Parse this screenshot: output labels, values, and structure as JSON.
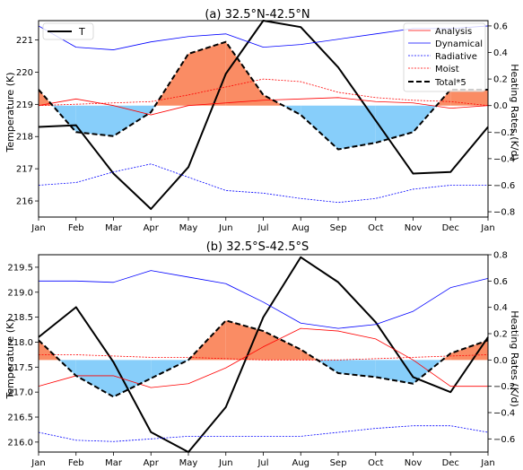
{
  "figure": {
    "months": [
      "Jan",
      "Feb",
      "Mar",
      "Apr",
      "May",
      "Jun",
      "Jul",
      "Aug",
      "Sep",
      "Oct",
      "Nov",
      "Dec",
      "Jan"
    ]
  },
  "colors": {
    "T": "#000000",
    "Analysis": "#ff0000",
    "Dynamical": "#0000ff",
    "Radiative": "#0000ff",
    "Moist": "#ff0000",
    "Total": "#000000",
    "fill_positive": "#fa8c64",
    "fill_negative": "#87cefa"
  },
  "chart_data": [
    {
      "type": "line",
      "title": "(a) 32.5$^\\circ$N-42.5$^\\circ$N",
      "title_display": "(a) 32.5°N-42.5°N",
      "xlabel": "",
      "ylabel_left": "Temperature (K)",
      "ylabel_right": "Heating Rates (K/d)",
      "x": [
        "Jan",
        "Feb",
        "Mar",
        "Apr",
        "May",
        "Jun",
        "Jul",
        "Aug",
        "Sep",
        "Oct",
        "Nov",
        "Dec",
        "Jan"
      ],
      "ylim_left": [
        215.5,
        221.6
      ],
      "ylim_right": [
        -0.84,
        0.64
      ],
      "yticks_left": [
        216,
        217,
        218,
        219,
        220,
        221
      ],
      "yticks_right": [
        -0.8,
        -0.6,
        -0.4,
        -0.2,
        0.0,
        0.2,
        0.4,
        0.6
      ],
      "ytick_labels_left": [
        "216",
        "217",
        "218",
        "219",
        "220",
        "221"
      ],
      "ytick_labels_right": [
        "−0.8",
        "−0.6",
        "−0.4",
        "−0.2",
        "0.0",
        "0.2",
        "0.4",
        "0.6"
      ],
      "grid": false,
      "legend_left": {
        "position": "upper-left",
        "entries": [
          "T"
        ]
      },
      "legend_right": {
        "position": "upper-right",
        "entries": [
          "Analysis",
          "Dynamical",
          "Radiative",
          "Moist",
          "Total*5"
        ]
      },
      "series": [
        {
          "name": "T",
          "axis": "left",
          "style": "solid-thick",
          "values": [
            218.3,
            218.35,
            216.85,
            215.75,
            217.05,
            219.95,
            221.6,
            221.4,
            220.15,
            218.5,
            216.85,
            216.9,
            218.3
          ]
        },
        {
          "name": "Analysis",
          "axis": "right",
          "style": "solid",
          "values": [
            0.0,
            0.05,
            0.0,
            -0.07,
            0.0,
            0.02,
            0.04,
            0.05,
            0.06,
            0.03,
            0.02,
            -0.02,
            0.0
          ]
        },
        {
          "name": "Dynamical",
          "axis": "right",
          "style": "solid",
          "values": [
            0.6,
            0.44,
            0.42,
            0.48,
            0.52,
            0.54,
            0.44,
            0.46,
            0.5,
            0.54,
            0.58,
            0.58,
            0.6
          ]
        },
        {
          "name": "Radiative",
          "axis": "right",
          "style": "dotted",
          "values": [
            -0.6,
            -0.58,
            -0.5,
            -0.44,
            -0.54,
            -0.64,
            -0.66,
            -0.7,
            -0.73,
            -0.7,
            -0.63,
            -0.6,
            -0.6
          ]
        },
        {
          "name": "Moist",
          "axis": "right",
          "style": "dotted",
          "values": [
            0.0,
            0.01,
            0.02,
            0.03,
            0.08,
            0.14,
            0.2,
            0.18,
            0.1,
            0.06,
            0.04,
            0.03,
            0.0
          ]
        },
        {
          "name": "Total*5",
          "axis": "right",
          "style": "dashed-thick",
          "values": [
            0.12,
            -0.2,
            -0.23,
            -0.05,
            0.39,
            0.48,
            0.08,
            -0.07,
            -0.33,
            -0.28,
            -0.2,
            0.12,
            0.12
          ]
        }
      ]
    },
    {
      "type": "line",
      "title": "(b) 32.5$^\\circ$S-42.5$^\\circ$S",
      "title_display": "(b) 32.5°S-42.5°S",
      "xlabel": "",
      "ylabel_left": "Temperature (K)",
      "ylabel_right": "Heating Rates (K/d)",
      "x": [
        "Jan",
        "Feb",
        "Mar",
        "Apr",
        "May",
        "Jun",
        "Jul",
        "Aug",
        "Sep",
        "Oct",
        "Nov",
        "Dec",
        "Jan"
      ],
      "ylim_left": [
        215.8,
        219.75
      ],
      "ylim_right": [
        -0.7,
        0.8
      ],
      "yticks_left": [
        216.0,
        216.5,
        217.0,
        217.5,
        218.0,
        218.5,
        219.0,
        219.5
      ],
      "yticks_right": [
        -0.6,
        -0.4,
        -0.2,
        0.0,
        0.2,
        0.4,
        0.6,
        0.8
      ],
      "ytick_labels_left": [
        "216.0",
        "216.5",
        "217.0",
        "217.5",
        "218.0",
        "218.5",
        "219.0",
        "219.5"
      ],
      "ytick_labels_right": [
        "−0.6",
        "−0.4",
        "−0.2",
        "0.0",
        "0.2",
        "0.4",
        "0.6",
        "0.8"
      ],
      "grid": false,
      "series": [
        {
          "name": "T",
          "axis": "left",
          "style": "solid-thick",
          "values": [
            218.1,
            218.7,
            217.6,
            216.2,
            215.8,
            216.7,
            218.5,
            219.7,
            219.2,
            218.4,
            217.3,
            217.0,
            218.1
          ]
        },
        {
          "name": "Analysis",
          "axis": "right",
          "style": "solid",
          "values": [
            -0.2,
            -0.12,
            -0.12,
            -0.21,
            -0.18,
            -0.06,
            0.1,
            0.24,
            0.22,
            0.16,
            0.0,
            -0.2,
            -0.2
          ]
        },
        {
          "name": "Dynamical",
          "axis": "right",
          "style": "solid",
          "values": [
            0.6,
            0.6,
            0.59,
            0.68,
            0.63,
            0.58,
            0.44,
            0.28,
            0.24,
            0.27,
            0.37,
            0.55,
            0.62
          ]
        },
        {
          "name": "Radiative",
          "axis": "right",
          "style": "dotted",
          "values": [
            -0.55,
            -0.61,
            -0.62,
            -0.6,
            -0.58,
            -0.58,
            -0.58,
            -0.58,
            -0.55,
            -0.52,
            -0.5,
            -0.5,
            -0.55
          ]
        },
        {
          "name": "Moist",
          "axis": "right",
          "style": "dotted",
          "values": [
            0.04,
            0.04,
            0.03,
            0.02,
            0.02,
            0.01,
            0.0,
            0.0,
            0.0,
            0.01,
            0.02,
            0.03,
            0.04
          ]
        },
        {
          "name": "Total*5",
          "axis": "right",
          "style": "dashed-thick",
          "values": [
            0.15,
            -0.12,
            -0.28,
            -0.14,
            0.0,
            0.3,
            0.22,
            0.08,
            -0.1,
            -0.13,
            -0.18,
            0.05,
            0.15
          ]
        }
      ]
    }
  ]
}
